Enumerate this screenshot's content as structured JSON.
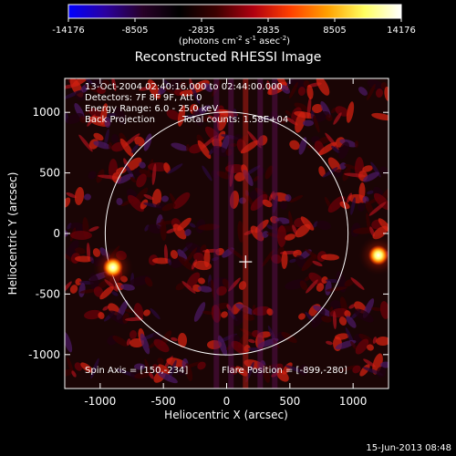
{
  "colorbar": {
    "tick_labels": [
      "-14176",
      "-8505",
      "-2835",
      "2835",
      "8505",
      "14176"
    ],
    "tick_values": [
      -14176,
      -8505,
      -2835,
      2835,
      8505,
      14176
    ],
    "min": -14176,
    "max": 14176,
    "unit_prefix": "(photons cm",
    "unit_sup1": "-2",
    "unit_mid": " s",
    "unit_sup2": "-1",
    "unit_mid2": " asec",
    "unit_sup3": "-2",
    "unit_suffix": ")",
    "gradient_colors": [
      "#0000ff",
      "#2a00a0",
      "#280028",
      "#000000",
      "#3c0000",
      "#b00010",
      "#ff4000",
      "#ffa000",
      "#ffff60",
      "#ffffff"
    ]
  },
  "title": "Reconstructed RHESSI Image",
  "info": {
    "time_range": "13-Oct-2004 02:40:16.000 to 02:44:00.000",
    "detectors": "Detectors: 7F 8F 9F, Att 0",
    "energy": "Energy Range: 6.0 - 25.0 keV",
    "method": "Back Projection",
    "counts": "Total counts: 1.58E+04",
    "spin_axis": "Spin Axis = [150,-234]",
    "flare_position": "Flare Position = [-899,-280]"
  },
  "axes": {
    "xlabel": "Heliocentric X (arcsec)",
    "ylabel": "Heliocentric Y (arcsec)",
    "xlim": [
      -1280,
      1280
    ],
    "ylim": [
      -1280,
      1280
    ],
    "xticks": [
      -1000,
      -500,
      0,
      500,
      1000
    ],
    "yticks": [
      -1000,
      -500,
      0,
      500,
      1000
    ],
    "xtick_labels": [
      "-1000",
      "-500",
      "0",
      "500",
      "1000"
    ],
    "ytick_labels": [
      "-1000",
      "-500",
      "0",
      "500",
      "1000"
    ]
  },
  "features": {
    "solar_limb_radius_arcsec": 960,
    "spin_axis_marker": [
      150,
      -234
    ],
    "bright_sources": [
      [
        -899,
        -280
      ],
      [
        1200,
        -180
      ]
    ]
  },
  "footer": {
    "timestamp": "15-Jun-2013 08:48"
  },
  "colors": {
    "background": "#000000",
    "foreground": "#ffffff"
  }
}
